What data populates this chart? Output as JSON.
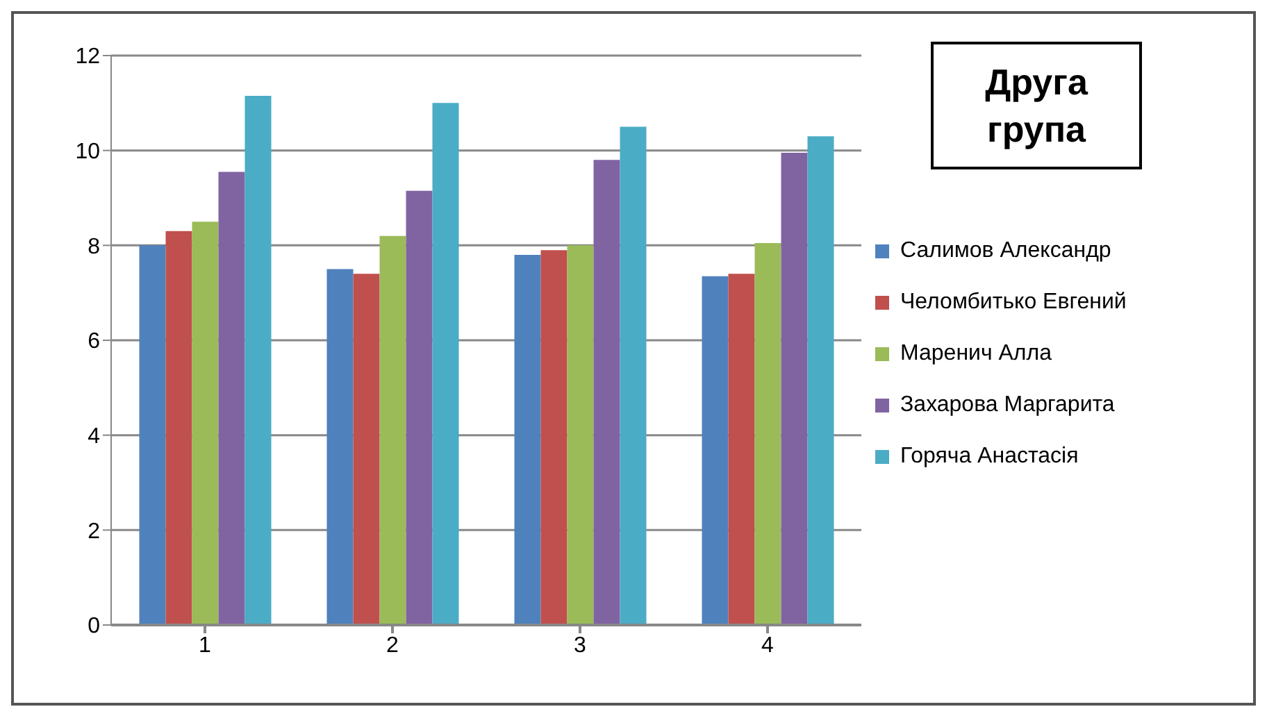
{
  "chart_data": {
    "type": "bar",
    "title": "Друга група",
    "categories": [
      "1",
      "2",
      "3",
      "4"
    ],
    "series": [
      {
        "name": "Салимов Александр",
        "color": "#4f81bd",
        "values": [
          8.0,
          7.5,
          7.8,
          7.35
        ]
      },
      {
        "name": "Челомбитько Евгений",
        "color": "#c0504d",
        "values": [
          8.3,
          7.4,
          7.9,
          7.4
        ]
      },
      {
        "name": "Маренич Алла",
        "color": "#9bbb59",
        "values": [
          8.5,
          8.2,
          8.0,
          8.05
        ]
      },
      {
        "name": "Захарова Маргарита",
        "color": "#8064a2",
        "values": [
          9.55,
          9.15,
          9.8,
          9.95
        ]
      },
      {
        "name": "Горяча Анастасія",
        "color": "#4bacc6",
        "values": [
          11.15,
          11.0,
          10.5,
          10.3
        ]
      }
    ],
    "ylim": [
      0,
      12
    ],
    "yticks": [
      0,
      2,
      4,
      6,
      8,
      10,
      12
    ],
    "grid": "y",
    "legend": "right"
  }
}
